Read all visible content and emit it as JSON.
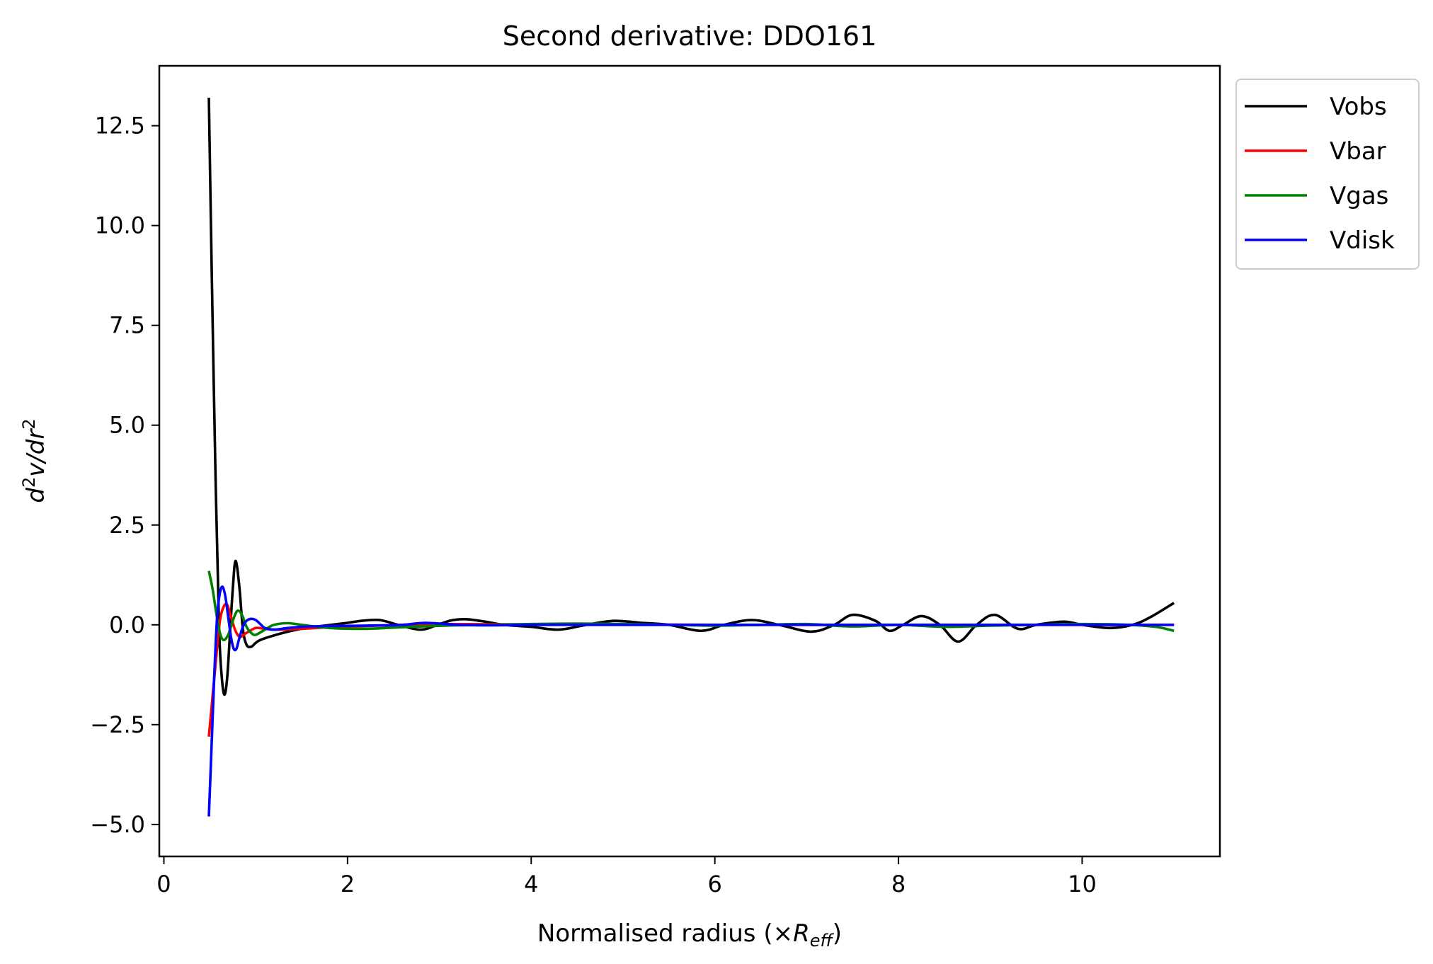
{
  "chart_data": {
    "type": "line",
    "title": "Second derivative: DDO161",
    "xlabel": {
      "prefix": "Normalised radius (×",
      "symbol": "R",
      "subscript": "eff",
      "suffix": ")"
    },
    "ylabel": {
      "d": "d",
      "exp1": "2",
      "mid": "v/dr",
      "exp2": "2"
    },
    "xlim": [
      -0.05,
      11.5
    ],
    "ylim": [
      -5.8,
      14.0
    ],
    "xticks": [
      0,
      2,
      4,
      6,
      8,
      10
    ],
    "xtick_labels": [
      "0",
      "2",
      "4",
      "6",
      "8",
      "10"
    ],
    "yticks": [
      -5.0,
      -2.5,
      0.0,
      2.5,
      5.0,
      7.5,
      10.0,
      12.5
    ],
    "ytick_labels": [
      "−5.0",
      "−2.5",
      "0.0",
      "2.5",
      "5.0",
      "7.5",
      "10.0",
      "12.5"
    ],
    "grid": false,
    "legend_position": "outside-top-right",
    "series": [
      {
        "name": "Vobs",
        "color": "#000000",
        "x": [
          0.49,
          0.52,
          0.56,
          0.6,
          0.63,
          0.66,
          0.69,
          0.72,
          0.75,
          0.78,
          0.82,
          0.86,
          0.9,
          0.95,
          1.0,
          1.05,
          1.15,
          1.3,
          1.5,
          1.75,
          2.0,
          2.15,
          2.35,
          2.55,
          2.8,
          3.0,
          3.15,
          3.3,
          3.5,
          3.7,
          4.0,
          4.3,
          4.6,
          4.9,
          5.2,
          5.5,
          5.85,
          6.1,
          6.4,
          6.7,
          7.05,
          7.3,
          7.5,
          7.75,
          7.9,
          8.05,
          8.25,
          8.45,
          8.65,
          8.85,
          9.05,
          9.3,
          9.5,
          9.8,
          10.0,
          10.3,
          10.55,
          10.75,
          11.0
        ],
        "y": [
          13.2,
          9.0,
          4.0,
          0.0,
          -1.3,
          -1.75,
          -1.3,
          -0.2,
          0.9,
          1.6,
          1.0,
          -0.1,
          -0.5,
          -0.55,
          -0.45,
          -0.38,
          -0.3,
          -0.2,
          -0.1,
          -0.02,
          0.05,
          0.1,
          0.12,
          0.0,
          -0.12,
          0.02,
          0.12,
          0.14,
          0.08,
          0.0,
          -0.05,
          -0.12,
          0.0,
          0.1,
          0.05,
          0.0,
          -0.15,
          0.0,
          0.12,
          0.0,
          -0.17,
          0.0,
          0.25,
          0.1,
          -0.15,
          0.0,
          0.22,
          0.0,
          -0.42,
          0.0,
          0.25,
          -0.1,
          0.0,
          0.08,
          0.0,
          -0.08,
          0.0,
          0.2,
          0.55
        ]
      },
      {
        "name": "Vbar",
        "color": "#ff0000",
        "x": [
          0.49,
          0.53,
          0.57,
          0.61,
          0.65,
          0.69,
          0.73,
          0.78,
          0.83,
          0.9,
          1.0,
          1.1,
          1.25,
          1.5,
          1.8,
          2.2,
          2.6,
          3.0,
          4.0,
          5.0,
          6.0,
          7.0,
          8.0,
          9.0,
          10.0,
          11.0
        ],
        "y": [
          -2.8,
          -1.8,
          -0.8,
          0.1,
          0.45,
          0.5,
          0.2,
          -0.15,
          -0.3,
          -0.2,
          -0.08,
          -0.1,
          -0.12,
          -0.1,
          -0.06,
          -0.03,
          0.0,
          0.02,
          0.01,
          0.01,
          0.0,
          0.0,
          0.0,
          0.0,
          0.0,
          0.0
        ]
      },
      {
        "name": "Vgas",
        "color": "#008000",
        "x": [
          0.49,
          0.53,
          0.57,
          0.61,
          0.65,
          0.7,
          0.75,
          0.8,
          0.85,
          0.9,
          0.95,
          1.0,
          1.1,
          1.2,
          1.35,
          1.5,
          1.7,
          1.9,
          2.2,
          2.5,
          2.8,
          3.2,
          3.6,
          4.0,
          4.5,
          5.0,
          5.5,
          6.0,
          6.5,
          7.0,
          7.5,
          8.0,
          8.5,
          9.0,
          9.5,
          10.0,
          10.5,
          10.8,
          11.0
        ],
        "y": [
          1.35,
          0.9,
          0.3,
          -0.2,
          -0.38,
          -0.25,
          0.1,
          0.35,
          0.25,
          -0.05,
          -0.2,
          -0.25,
          -0.12,
          0.0,
          0.04,
          0.0,
          -0.06,
          -0.09,
          -0.1,
          -0.07,
          -0.04,
          -0.01,
          0.0,
          0.02,
          0.03,
          0.02,
          0.0,
          -0.02,
          0.0,
          0.02,
          -0.04,
          0.0,
          -0.05,
          -0.02,
          0.0,
          0.02,
          0.0,
          -0.05,
          -0.15
        ]
      },
      {
        "name": "Vdisk",
        "color": "#0000ff",
        "x": [
          0.49,
          0.52,
          0.55,
          0.58,
          0.61,
          0.64,
          0.67,
          0.7,
          0.73,
          0.76,
          0.79,
          0.82,
          0.86,
          0.9,
          0.95,
          1.0,
          1.05,
          1.1,
          1.2,
          1.35,
          1.5,
          1.8,
          2.2,
          2.6,
          2.85,
          3.2,
          3.6,
          4.0,
          4.5,
          5.0,
          5.5,
          6.0,
          7.0,
          8.0,
          9.0,
          10.0,
          11.0
        ],
        "y": [
          -4.8,
          -3.0,
          -1.2,
          0.2,
          0.8,
          0.95,
          0.7,
          0.2,
          -0.3,
          -0.6,
          -0.6,
          -0.35,
          -0.05,
          0.1,
          0.15,
          0.12,
          0.02,
          -0.08,
          -0.12,
          -0.08,
          -0.05,
          -0.03,
          -0.02,
          0.0,
          0.05,
          0.0,
          -0.01,
          0.0,
          0.0,
          0.0,
          0.0,
          0.0,
          0.0,
          0.0,
          0.0,
          0.0,
          0.0
        ]
      }
    ]
  }
}
